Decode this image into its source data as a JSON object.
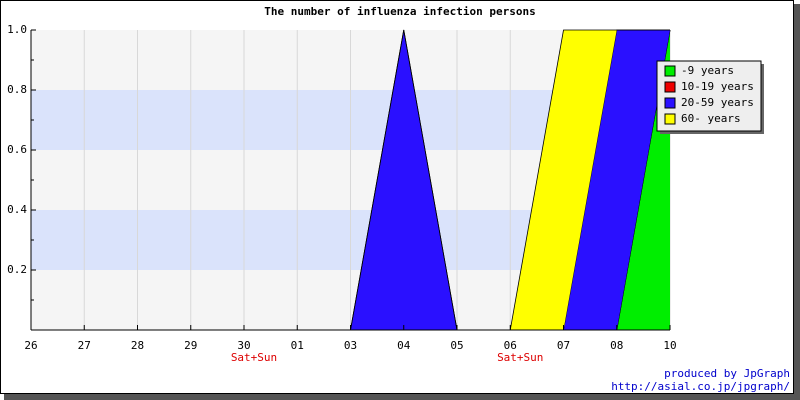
{
  "chart_data": {
    "type": "stacked-area",
    "title": "The number of influenza infection persons",
    "categories": [
      "26",
      "27",
      "28",
      "29",
      "30",
      "01",
      "03",
      "04",
      "05",
      "06",
      "07",
      "08",
      "10"
    ],
    "x_sublabels": [
      null,
      null,
      null,
      null,
      "Sat+Sun",
      null,
      null,
      null,
      null,
      "Sat+Sun",
      null,
      null,
      null
    ],
    "series": [
      {
        "name": "-9 years",
        "color": "#00ee00",
        "values": [
          0,
          0,
          0,
          0,
          0,
          0,
          0,
          0,
          0,
          0,
          0,
          0,
          1
        ]
      },
      {
        "name": "10-19 years",
        "color": "#ee0000",
        "values": [
          0,
          0,
          0,
          0,
          0,
          0,
          0,
          0,
          0,
          0,
          0,
          0,
          0
        ]
      },
      {
        "name": "20-59 years",
        "color": "#2a10ff",
        "values": [
          0,
          0,
          0,
          0,
          0,
          0,
          0,
          1,
          0,
          0,
          0,
          1,
          0
        ]
      },
      {
        "name": "60- years",
        "color": "#ffff00",
        "values": [
          0,
          0,
          0,
          0,
          0,
          0,
          0,
          0,
          0,
          0,
          1,
          0,
          0
        ]
      }
    ],
    "ylim": [
      0,
      1
    ],
    "yticks": [
      0.2,
      0.4,
      0.6,
      0.8,
      {
        "value": 1,
        "label": "1.0"
      }
    ],
    "grid": true,
    "legend": "top-right",
    "credits": [
      "produced by JpGraph",
      "http://asial.co.jp/jpgraph/"
    ]
  }
}
